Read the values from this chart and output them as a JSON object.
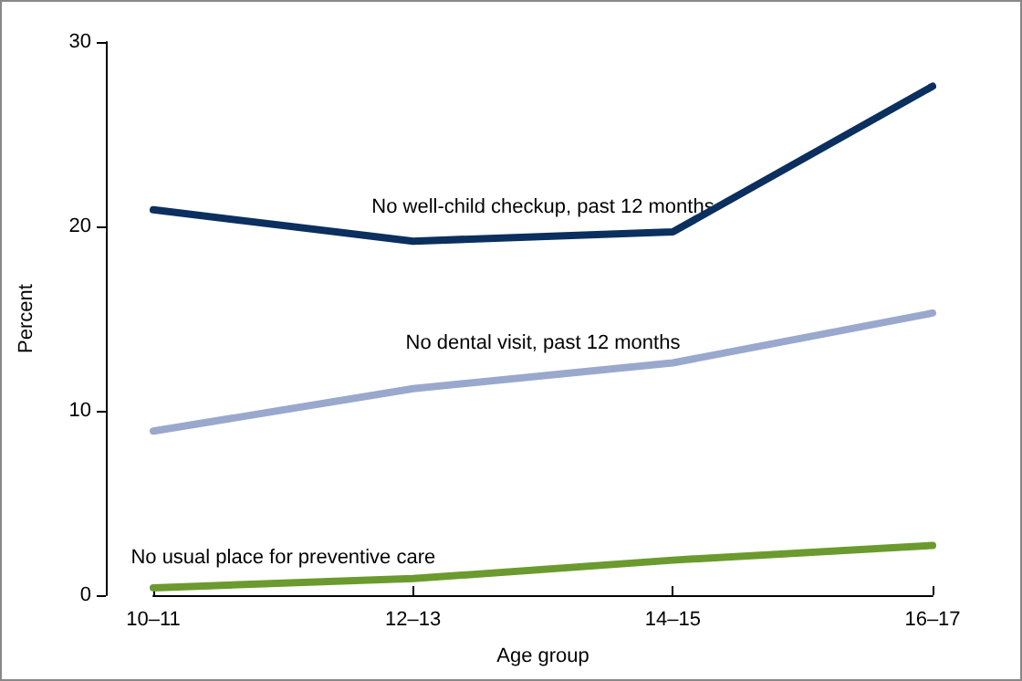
{
  "chart_data": {
    "type": "line",
    "xlabel": "Age group",
    "ylabel": "Percent",
    "categories": [
      "10–11",
      "12–13",
      "14–15",
      "16–17"
    ],
    "series": [
      {
        "name": "No well-child checkup, past 12 months",
        "color": "#0b2f5e",
        "values": [
          20.9,
          19.2,
          19.7,
          27.6
        ]
      },
      {
        "name": "No dental visit, past 12 months",
        "color": "#99a8cc",
        "values": [
          8.9,
          11.2,
          12.6,
          15.3
        ]
      },
      {
        "name": "No usual place for preventive care",
        "color": "#6b9a2e",
        "values": [
          0.4,
          0.9,
          1.9,
          2.7
        ]
      }
    ],
    "ylim": [
      0,
      30
    ],
    "yticks": [
      0,
      10,
      20,
      30
    ],
    "grid": false,
    "legend": false,
    "marker": "none",
    "line_style": "solid"
  }
}
